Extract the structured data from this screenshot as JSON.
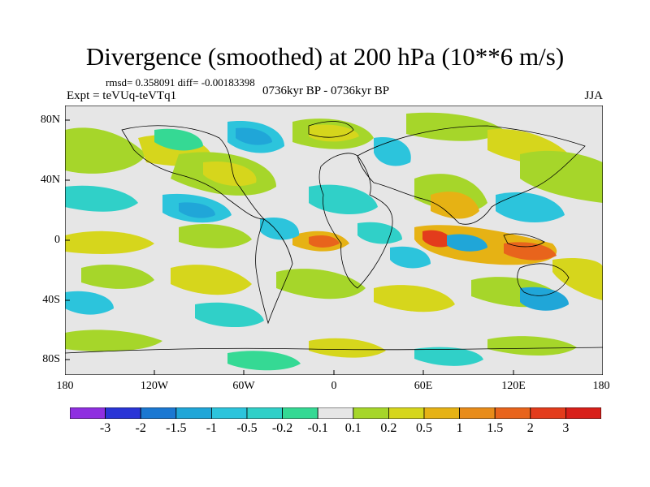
{
  "title": "Divergence (smoothed) at 200 hPa (10**6 m/s)",
  "stats_text": "rmsd= 0.358091 diff= -0.00183398",
  "experiment_label": "Expt = teVUq-teVTq1",
  "period_label": "0736kyr BP - 0736kyr BP",
  "season_label": "JJA",
  "y_axis_labels": [
    "80N",
    "40N",
    "0",
    "40S",
    "80S"
  ],
  "x_axis_labels": [
    "180",
    "120W",
    "60W",
    "0",
    "60E",
    "120E",
    "180"
  ],
  "colorbar": {
    "labels": [
      "-3",
      "-2",
      "-1.5",
      "-1",
      "-0.5",
      "-0.2",
      "-0.1",
      "0.1",
      "0.2",
      "0.5",
      "1",
      "1.5",
      "2",
      "3"
    ],
    "colors": [
      "#8f2fe0",
      "#2a35d6",
      "#1b78d2",
      "#20a6d8",
      "#2cc4dc",
      "#30d0c8",
      "#35d994",
      "#e6e6e6",
      "#a6d62a",
      "#d6d61c",
      "#e6b214",
      "#e88c1a",
      "#e8641c",
      "#e33c1c",
      "#d8201a"
    ]
  }
}
